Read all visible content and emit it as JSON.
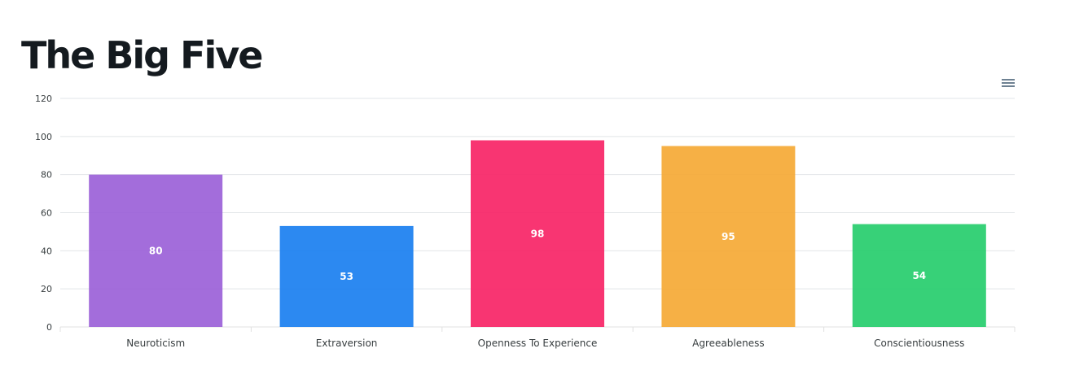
{
  "chart_data": {
    "type": "bar",
    "title": "The Big Five",
    "categories": [
      "Neuroticism",
      "Extraversion",
      "Openness To Experience",
      "Agreeableness",
      "Conscientiousness"
    ],
    "values": [
      80,
      53,
      98,
      95,
      54
    ],
    "colors": [
      "#9b61d8",
      "#1a7ff0",
      "#f72466",
      "#f5a935",
      "#26cd6c"
    ],
    "ylim": [
      0,
      120
    ],
    "yticks": [
      0,
      20,
      40,
      60,
      80,
      100,
      120
    ],
    "xlabel": "",
    "ylabel": "",
    "grid": true,
    "data_labels": true
  },
  "toolbar": {
    "menu_icon": "hamburger-menu-icon"
  }
}
